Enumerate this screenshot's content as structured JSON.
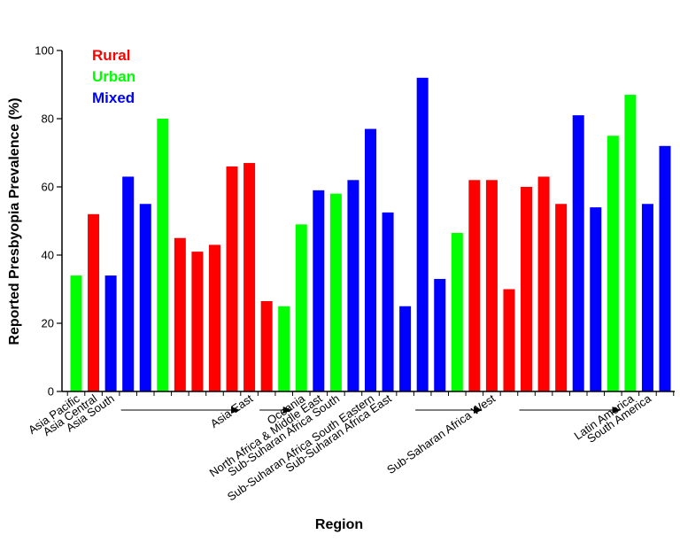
{
  "chart_data": {
    "type": "bar",
    "xlabel": "Region",
    "ylabel": "Reported Presbyopia Prevalence (%)",
    "ylim": [
      0,
      100
    ],
    "yticks": [
      0,
      20,
      40,
      60,
      80,
      100
    ],
    "grid": false,
    "legend_position": "top-left",
    "legend": [
      {
        "label": "Rural",
        "color": "#ff0000"
      },
      {
        "label": "Urban",
        "color": "#00ff00"
      },
      {
        "label": "Mixed",
        "color": "#0000ff"
      }
    ],
    "colors": {
      "rural": "#ff0000",
      "urban": "#00ff00",
      "mixed": "#0000ff"
    },
    "bars": [
      {
        "value": 34,
        "type": "urban"
      },
      {
        "value": 52,
        "type": "rural"
      },
      {
        "value": 34,
        "type": "mixed"
      },
      {
        "value": 63,
        "type": "mixed"
      },
      {
        "value": 55,
        "type": "mixed"
      },
      {
        "value": 80,
        "type": "urban"
      },
      {
        "value": 45,
        "type": "rural"
      },
      {
        "value": 41,
        "type": "rural"
      },
      {
        "value": 43,
        "type": "rural"
      },
      {
        "value": 66,
        "type": "rural"
      },
      {
        "value": 67,
        "type": "rural"
      },
      {
        "value": 26.5,
        "type": "rural"
      },
      {
        "value": 25,
        "type": "urban"
      },
      {
        "value": 49,
        "type": "urban"
      },
      {
        "value": 59,
        "type": "mixed"
      },
      {
        "value": 58,
        "type": "urban"
      },
      {
        "value": 62,
        "type": "mixed"
      },
      {
        "value": 77,
        "type": "mixed"
      },
      {
        "value": 52.5,
        "type": "mixed"
      },
      {
        "value": 25,
        "type": "mixed"
      },
      {
        "value": 92,
        "type": "mixed"
      },
      {
        "value": 33,
        "type": "mixed"
      },
      {
        "value": 46.5,
        "type": "urban"
      },
      {
        "value": 62,
        "type": "rural"
      },
      {
        "value": 62,
        "type": "rural"
      },
      {
        "value": 30,
        "type": "rural"
      },
      {
        "value": 60,
        "type": "rural"
      },
      {
        "value": 63,
        "type": "rural"
      },
      {
        "value": 55,
        "type": "rural"
      },
      {
        "value": 81,
        "type": "mixed"
      },
      {
        "value": 54,
        "type": "mixed"
      },
      {
        "value": 75,
        "type": "urban"
      },
      {
        "value": 87,
        "type": "urban"
      },
      {
        "value": 55,
        "type": "mixed"
      },
      {
        "value": 72,
        "type": "mixed"
      }
    ],
    "region_labels": [
      {
        "text": "Asia Pacific",
        "bar": 0
      },
      {
        "text": "Asia Central",
        "bar": 1
      },
      {
        "text": "Asia South",
        "bar": 2
      },
      {
        "text": "Asia East",
        "bar": 10
      },
      {
        "text": "Oceania",
        "bar": 13
      },
      {
        "text": "North Africa & Middle East",
        "bar": 14
      },
      {
        "text": "Sub-Suharan Africa South",
        "bar": 15
      },
      {
        "text": "Sub-Suharan Africa South Eastern",
        "bar": 17
      },
      {
        "text": "Sub-Suharan Africa East",
        "bar": 18
      },
      {
        "text": "Sub-Saharan Africa West",
        "bar": 24
      },
      {
        "text": "Latin America",
        "bar": 32
      },
      {
        "text": "South America",
        "bar": 33
      }
    ],
    "range_arrows": [
      {
        "from": 3,
        "to": 9
      },
      {
        "from": 11,
        "to": 12
      },
      {
        "from": 20,
        "to": 23
      },
      {
        "from": 26,
        "to": 31
      }
    ]
  }
}
